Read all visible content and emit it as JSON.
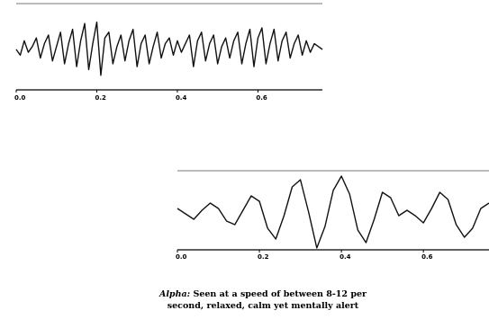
{
  "chart_data": [
    {
      "type": "line",
      "title": "",
      "xlabel": "",
      "ylabel": "",
      "xlim": [
        0.0,
        0.76
      ],
      "xticks": [
        "0.0",
        "0.2",
        "0.4",
        "0.6"
      ],
      "grid": false,
      "series": [
        {
          "x": [
            0.0,
            0.01,
            0.02,
            0.03,
            0.04,
            0.05,
            0.06,
            0.07,
            0.08,
            0.09,
            0.1,
            0.11,
            0.12,
            0.13,
            0.14,
            0.15,
            0.16,
            0.17,
            0.18,
            0.19,
            0.2,
            0.21,
            0.22,
            0.23,
            0.24,
            0.25,
            0.26,
            0.27,
            0.28,
            0.29,
            0.3,
            0.31,
            0.32,
            0.33,
            0.34,
            0.35,
            0.36,
            0.37,
            0.38,
            0.39,
            0.4,
            0.41,
            0.42,
            0.43,
            0.44,
            0.45,
            0.46,
            0.47,
            0.48,
            0.49,
            0.5,
            0.51,
            0.52,
            0.53,
            0.54,
            0.55,
            0.56,
            0.57,
            0.58,
            0.59,
            0.6,
            0.61,
            0.62,
            0.63,
            0.64,
            0.65,
            0.66,
            0.67,
            0.68,
            0.69,
            0.7,
            0.71,
            0.72,
            0.73,
            0.74,
            0.75,
            0.76
          ],
          "y": [
            0.0,
            -0.2,
            0.3,
            -0.1,
            0.1,
            0.4,
            -0.3,
            0.2,
            0.5,
            -0.4,
            0.1,
            0.6,
            -0.5,
            0.2,
            0.7,
            -0.6,
            0.3,
            0.9,
            -0.7,
            0.2,
            0.95,
            -0.9,
            0.4,
            0.6,
            -0.5,
            0.1,
            0.5,
            -0.4,
            0.3,
            0.7,
            -0.6,
            0.2,
            0.5,
            -0.5,
            0.1,
            0.6,
            -0.3,
            0.2,
            0.4,
            -0.2,
            0.3,
            -0.1,
            0.2,
            0.5,
            -0.6,
            0.3,
            0.6,
            -0.4,
            0.2,
            0.5,
            -0.5,
            0.1,
            0.4,
            -0.3,
            0.3,
            0.6,
            -0.5,
            0.2,
            0.7,
            -0.6,
            0.4,
            0.75,
            -0.5,
            0.2,
            0.7,
            -0.4,
            0.3,
            0.6,
            -0.3,
            0.2,
            0.5,
            -0.2,
            0.3,
            -0.1,
            0.2,
            0.1,
            0.0
          ]
        }
      ]
    },
    {
      "type": "line",
      "title": "",
      "xlabel": "",
      "ylabel": "",
      "xlim": [
        0.0,
        0.76
      ],
      "xticks": [
        "0.0",
        "0.2",
        "0.4",
        "0.6"
      ],
      "grid": false,
      "series": [
        {
          "x": [
            0.0,
            0.02,
            0.04,
            0.06,
            0.08,
            0.1,
            0.12,
            0.14,
            0.16,
            0.18,
            0.2,
            0.22,
            0.24,
            0.26,
            0.28,
            0.3,
            0.32,
            0.34,
            0.36,
            0.38,
            0.4,
            0.42,
            0.44,
            0.46,
            0.48,
            0.5,
            0.52,
            0.54,
            0.56,
            0.58,
            0.6,
            0.62,
            0.64,
            0.66,
            0.68,
            0.7,
            0.72,
            0.74,
            0.76
          ],
          "y": [
            0.1,
            -0.05,
            -0.2,
            0.05,
            0.25,
            0.1,
            -0.25,
            -0.35,
            0.05,
            0.45,
            0.3,
            -0.45,
            -0.75,
            -0.1,
            0.7,
            0.9,
            0.0,
            -1.0,
            -0.4,
            0.6,
            1.0,
            0.5,
            -0.5,
            -0.85,
            -0.2,
            0.55,
            0.4,
            -0.1,
            0.05,
            -0.1,
            -0.3,
            0.1,
            0.55,
            0.35,
            -0.35,
            -0.7,
            -0.45,
            0.1,
            0.25
          ]
        }
      ]
    }
  ],
  "caption": {
    "term": "Alpha:",
    "text": " Seen at a speed of between 8-12 per second, relaxed, calm yet mentally alert"
  }
}
